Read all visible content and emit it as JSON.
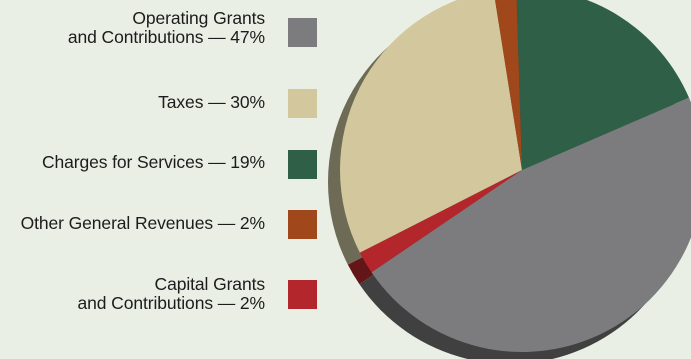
{
  "chart_data": {
    "type": "pie",
    "title": "",
    "legend_position": "left",
    "slices": [
      {
        "label": "Operating Grants\nand Contributions — 47%",
        "value": 47,
        "color": "#7c7c7e",
        "shadow": "#3f403f"
      },
      {
        "label": "Taxes — 30%",
        "value": 30,
        "color": "#d3c79d",
        "shadow": "#6d6a55"
      },
      {
        "label": "Charges for Services — 19%",
        "value": 19,
        "color": "#2f5f47",
        "shadow": "#1d3a2b"
      },
      {
        "label": "Other General Revenues — 2%",
        "value": 2,
        "color": "#a0481b",
        "shadow": "#5a2a10"
      },
      {
        "label": "Capital Grants\nand Contributions — 2%",
        "value": 2,
        "color": "#b3262b",
        "shadow": "#631518"
      }
    ]
  }
}
